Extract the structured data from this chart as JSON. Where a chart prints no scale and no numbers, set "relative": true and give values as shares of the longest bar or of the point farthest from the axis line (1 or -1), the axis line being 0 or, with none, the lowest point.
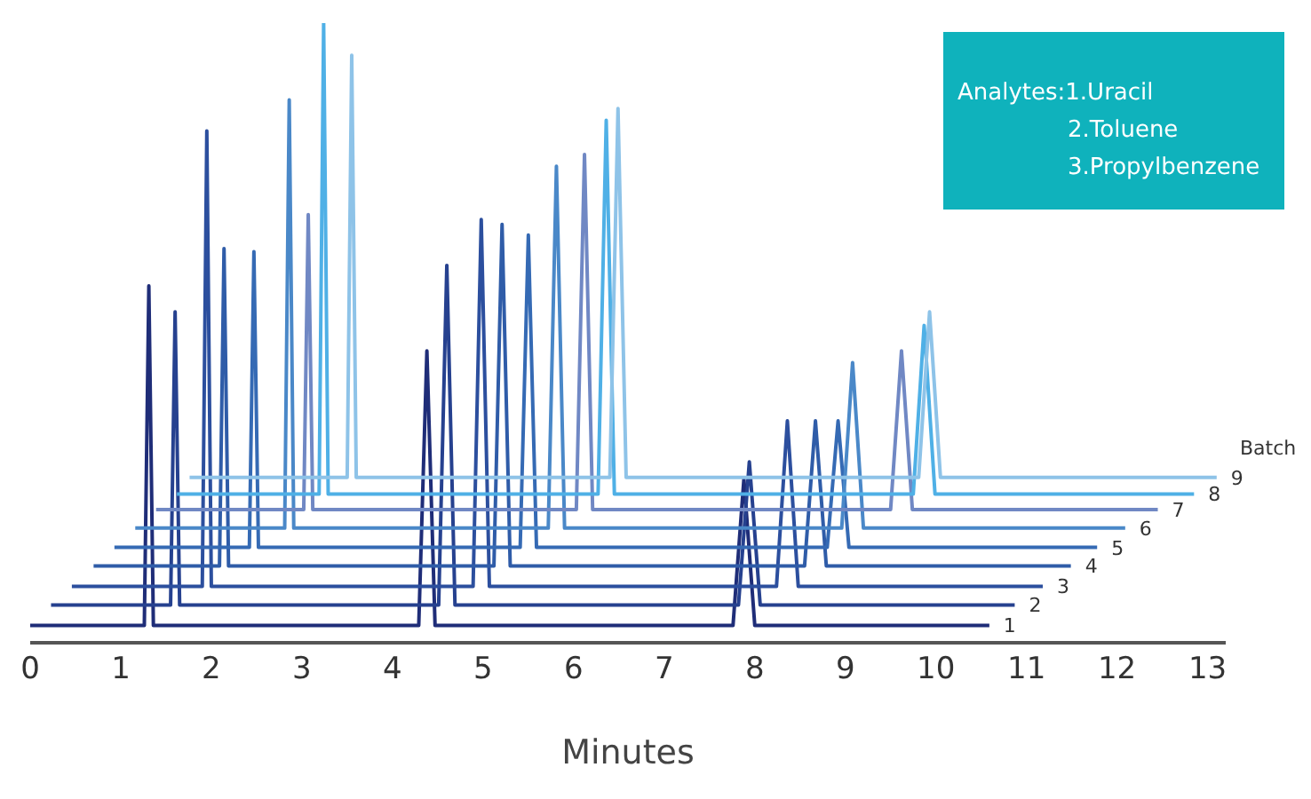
{
  "chart_data": {
    "type": "line",
    "relative": true,
    "xlabel": "Minutes",
    "xlim": [
      0,
      13.2
    ],
    "xticks": [
      0,
      1,
      2,
      3,
      4,
      5,
      6,
      7,
      8,
      9,
      10,
      11,
      12,
      13
    ],
    "grid": false,
    "legend": false,
    "marker": "none",
    "line_style": "solid",
    "legend_title": "Batch",
    "annotations": [
      "Analytes:1.Uracil",
      "2.Toluene",
      "3.Propylbenzene"
    ],
    "series": [
      {
        "name": "1",
        "color": "#1f2d78",
        "x": [
          0,
          1.26,
          1.31,
          1.36,
          4.29,
          4.38,
          4.47,
          7.76,
          7.88,
          8.0,
          10.59
        ],
        "values": [
          0.028,
          0.028,
          0.576,
          0.028,
          0.028,
          0.471,
          0.028,
          0.028,
          0.264,
          0.028,
          0.028
        ]
      },
      {
        "name": "2",
        "color": "#26418f",
        "x": [
          0.23,
          1.55,
          1.6,
          1.65,
          4.51,
          4.6,
          4.69,
          7.82,
          7.94,
          8.06,
          10.87
        ],
        "values": [
          0.061,
          0.061,
          0.534,
          0.061,
          0.061,
          0.609,
          0.061,
          0.061,
          0.292,
          0.061,
          0.061
        ]
      },
      {
        "name": "3",
        "color": "#2c4f9e",
        "x": [
          0.46,
          1.9,
          1.95,
          2.0,
          4.89,
          4.98,
          5.07,
          8.24,
          8.36,
          8.48,
          11.18
        ],
        "values": [
          0.091,
          0.091,
          0.826,
          0.091,
          0.091,
          0.683,
          0.091,
          0.091,
          0.358,
          0.091,
          0.091
        ]
      },
      {
        "name": "4",
        "color": "#2f5ca8",
        "x": [
          0.7,
          2.09,
          2.14,
          2.19,
          5.12,
          5.21,
          5.3,
          8.55,
          8.67,
          8.79,
          11.49
        ],
        "values": [
          0.124,
          0.124,
          0.636,
          0.124,
          0.124,
          0.675,
          0.124,
          0.124,
          0.358,
          0.124,
          0.124
        ]
      },
      {
        "name": "5",
        "color": "#356ab4",
        "x": [
          0.93,
          2.42,
          2.47,
          2.52,
          5.41,
          5.5,
          5.59,
          8.8,
          8.92,
          9.04,
          11.78
        ],
        "values": [
          0.154,
          0.154,
          0.631,
          0.154,
          0.154,
          0.658,
          0.154,
          0.154,
          0.358,
          0.154,
          0.154
        ]
      },
      {
        "name": "6",
        "color": "#4a88c8",
        "x": [
          1.16,
          2.81,
          2.86,
          2.91,
          5.72,
          5.81,
          5.9,
          8.96,
          9.08,
          9.2,
          12.09
        ],
        "values": [
          0.185,
          0.185,
          0.876,
          0.185,
          0.185,
          0.769,
          0.185,
          0.185,
          0.452,
          0.185,
          0.185
        ]
      },
      {
        "name": "7",
        "color": "#7088c4",
        "x": [
          1.39,
          3.02,
          3.07,
          3.12,
          6.03,
          6.12,
          6.21,
          9.5,
          9.62,
          9.74,
          12.45
        ],
        "values": [
          0.215,
          0.215,
          0.691,
          0.215,
          0.215,
          0.788,
          0.215,
          0.215,
          0.471,
          0.215,
          0.215
        ]
      },
      {
        "name": "8",
        "color": "#4fb0e6",
        "x": [
          1.62,
          3.19,
          3.24,
          3.29,
          6.27,
          6.36,
          6.45,
          9.75,
          9.87,
          9.99,
          12.85
        ],
        "values": [
          0.24,
          0.24,
          1,
          0.24,
          0.24,
          0.843,
          0.24,
          0.24,
          0.512,
          0.24,
          0.24
        ]
      },
      {
        "name": "9",
        "color": "#8ec3e8",
        "x": [
          1.76,
          3.5,
          3.55,
          3.6,
          6.4,
          6.49,
          6.58,
          9.81,
          9.93,
          10.05,
          13.1
        ],
        "values": [
          0.267,
          0.267,
          0.948,
          0.267,
          0.267,
          0.862,
          0.267,
          0.267,
          0.534,
          0.267,
          0.267
        ]
      }
    ]
  }
}
